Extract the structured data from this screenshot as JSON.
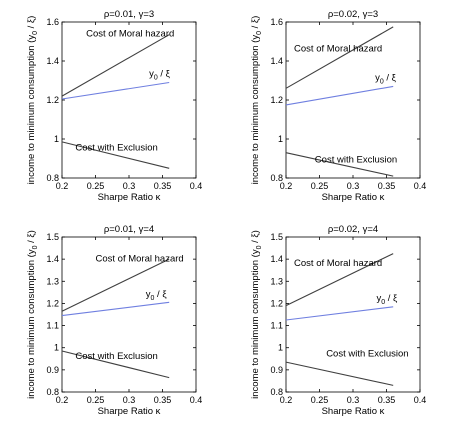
{
  "chart_data": [
    {
      "type": "line",
      "title": "ρ=0.01, γ=3",
      "xlabel": "Sharpe Ratio κ",
      "ylabel": "income to minimum consumption (y0 / ξ)",
      "xlim": [
        0.2,
        0.4
      ],
      "ylim": [
        0.8,
        1.6
      ],
      "xticks": [
        "0.2",
        "0.25",
        "0.3",
        "0.35",
        "0.4"
      ],
      "yticks": [
        "0.8",
        "1",
        "1.2",
        "1.4",
        "1.6"
      ],
      "grid": false,
      "series": [
        {
          "key": "moral",
          "color": "#404040",
          "x": [
            0.2,
            0.36
          ],
          "y": [
            1.22,
            1.535
          ]
        },
        {
          "key": "y0xi",
          "color": "#6f7fe0",
          "x": [
            0.2,
            0.36
          ],
          "y": [
            1.205,
            1.29
          ]
        },
        {
          "key": "excl",
          "color": "#404040",
          "x": [
            0.2,
            0.36
          ],
          "y": [
            0.985,
            0.85
          ]
        }
      ],
      "annotations": [
        {
          "key": "moral",
          "text": "Cost of Moral hazard",
          "x": 0.236,
          "y": 1.525
        },
        {
          "key": "y0xi",
          "text": "y0 / ξ",
          "x": 0.33,
          "y": 1.32
        },
        {
          "key": "excl",
          "text": "Cost with Exclusion",
          "x": 0.22,
          "y": 0.94
        }
      ]
    },
    {
      "type": "line",
      "title": "ρ=0.02, γ=3",
      "xlabel": "Sharpe Ratio κ",
      "ylabel": "income to minimum consumption (y0 / ξ)",
      "xlim": [
        0.2,
        0.4
      ],
      "ylim": [
        0.8,
        1.6
      ],
      "xticks": [
        "0.2",
        "0.25",
        "0.3",
        "0.35",
        "0.4"
      ],
      "yticks": [
        "0.8",
        "1",
        "1.2",
        "1.4",
        "1.6"
      ],
      "grid": false,
      "series": [
        {
          "key": "moral",
          "color": "#404040",
          "x": [
            0.2,
            0.36
          ],
          "y": [
            1.26,
            1.575
          ]
        },
        {
          "key": "y0xi",
          "color": "#6f7fe0",
          "x": [
            0.2,
            0.36
          ],
          "y": [
            1.175,
            1.27
          ]
        },
        {
          "key": "excl",
          "color": "#404040",
          "x": [
            0.2,
            0.36
          ],
          "y": [
            0.93,
            0.81
          ]
        }
      ],
      "annotations": [
        {
          "key": "moral",
          "text": "Cost of Moral hazard",
          "x": 0.212,
          "y": 1.45
        },
        {
          "key": "y0xi",
          "text": "y0 / ξ",
          "x": 0.333,
          "y": 1.3
        },
        {
          "key": "excl",
          "text": "Cost with Exclusion",
          "x": 0.243,
          "y": 0.88
        }
      ]
    },
    {
      "type": "line",
      "title": "ρ=0.01, γ=4",
      "xlabel": "Sharpe Ratio κ",
      "ylabel": "income to minimum consumption (y0 / ξ)",
      "xlim": [
        0.2,
        0.4
      ],
      "ylim": [
        0.8,
        1.5
      ],
      "xticks": [
        "0.2",
        "0.25",
        "0.3",
        "0.35",
        "0.4"
      ],
      "yticks": [
        "0.8",
        "0.9",
        "1",
        "1.1",
        "1.2",
        "1.3",
        "1.4",
        "1.5"
      ],
      "grid": false,
      "series": [
        {
          "key": "moral",
          "color": "#404040",
          "x": [
            0.2,
            0.36
          ],
          "y": [
            1.165,
            1.4
          ]
        },
        {
          "key": "y0xi",
          "color": "#6f7fe0",
          "x": [
            0.2,
            0.36
          ],
          "y": [
            1.145,
            1.205
          ]
        },
        {
          "key": "excl",
          "color": "#404040",
          "x": [
            0.2,
            0.36
          ],
          "y": [
            0.985,
            0.865
          ]
        }
      ],
      "annotations": [
        {
          "key": "moral",
          "text": "Cost of Moral hazard",
          "x": 0.25,
          "y": 1.39
        },
        {
          "key": "y0xi",
          "text": "y0 / ξ",
          "x": 0.325,
          "y": 1.23
        },
        {
          "key": "excl",
          "text": "Cost with Exclusion",
          "x": 0.22,
          "y": 0.95
        }
      ]
    },
    {
      "type": "line",
      "title": "ρ=0.02, γ=4",
      "xlabel": "Sharpe Ratio κ",
      "ylabel": "income to minimum consumption (y0 / ξ)",
      "xlim": [
        0.2,
        0.4
      ],
      "ylim": [
        0.8,
        1.5
      ],
      "xticks": [
        "0.2",
        "0.25",
        "0.3",
        "0.35",
        "0.4"
      ],
      "yticks": [
        "0.8",
        "0.9",
        "1",
        "1.1",
        "1.2",
        "1.3",
        "1.4",
        "1.5"
      ],
      "grid": false,
      "series": [
        {
          "key": "moral",
          "color": "#404040",
          "x": [
            0.2,
            0.36
          ],
          "y": [
            1.19,
            1.425
          ]
        },
        {
          "key": "y0xi",
          "color": "#6f7fe0",
          "x": [
            0.2,
            0.36
          ],
          "y": [
            1.125,
            1.185
          ]
        },
        {
          "key": "excl",
          "color": "#404040",
          "x": [
            0.2,
            0.36
          ],
          "y": [
            0.935,
            0.83
          ]
        }
      ],
      "annotations": [
        {
          "key": "moral",
          "text": "Cost of Moral hazard",
          "x": 0.212,
          "y": 1.37
        },
        {
          "key": "y0xi",
          "text": "y0 / ξ",
          "x": 0.335,
          "y": 1.21
        },
        {
          "key": "excl",
          "text": "Cost with Exclusion",
          "x": 0.26,
          "y": 0.96
        }
      ]
    }
  ]
}
